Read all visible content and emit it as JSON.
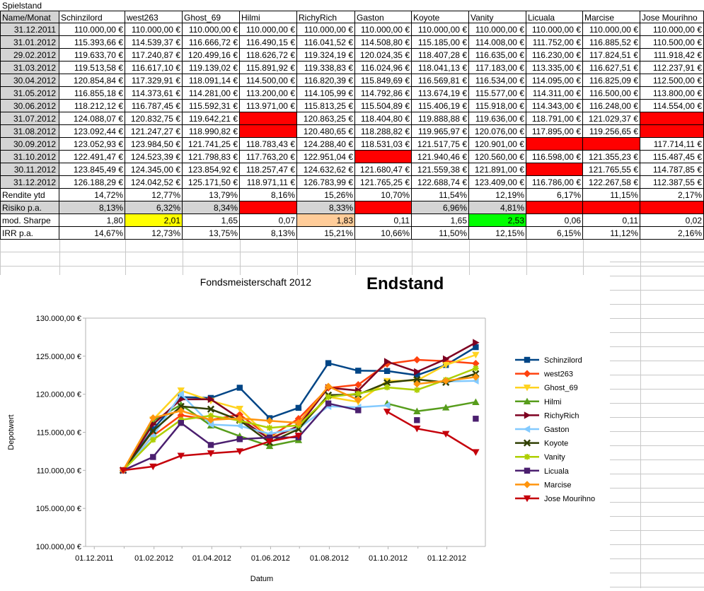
{
  "sheet": {
    "title": "Spielstand",
    "corner_label": "Name/Monat",
    "players": [
      "Schinzilord",
      "west263",
      "Ghost_69",
      "Hilmi",
      "RichyRich",
      "Gaston",
      "Koyote",
      "Vanity",
      "Licuala",
      "Marcise",
      "Jose Mourihno"
    ],
    "rows": [
      {
        "date": "31.12.2011",
        "values": [
          "110.000,00 €",
          "110.000,00 €",
          "110.000,00 €",
          "110.000,00 €",
          "110.000,00 €",
          "110.000,00 €",
          "110.000,00 €",
          "110.000,00 €",
          "110.000,00 €",
          "110.000,00 €",
          "110.000,00 €"
        ]
      },
      {
        "date": "31.01.2012",
        "values": [
          "115.393,66 €",
          "114.539,37 €",
          "116.666,72 €",
          "116.490,15 €",
          "116.041,52 €",
          "114.508,80 €",
          "115.185,00 €",
          "114.008,00 €",
          "111.752,00 €",
          "116.885,52 €",
          "110.500,00 €"
        ]
      },
      {
        "date": "29.02.2012",
        "values": [
          "119.633,70 €",
          "117.240,87 €",
          "120.499,16 €",
          "118.626,72 €",
          "119.324,19 €",
          "120.024,35 €",
          "118.407,28 €",
          "116.635,00 €",
          "116.230,00 €",
          "117.824,51 €",
          "111.918,42 €"
        ]
      },
      {
        "date": "31.03.2012",
        "values": [
          "119.513,58 €",
          "116.617,10 €",
          "119.139,02 €",
          "115.891,92 €",
          "119.338,83 €",
          "116.024,96 €",
          "118.041,13 €",
          "117.183,00 €",
          "113.335,00 €",
          "116.627,51 €",
          "112.237,91 €"
        ]
      },
      {
        "date": "30.04.2012",
        "values": [
          "120.854,84 €",
          "117.329,91 €",
          "118.091,14 €",
          "114.500,00 €",
          "116.820,39 €",
          "115.849,69 €",
          "116.569,81 €",
          "116.534,00 €",
          "114.095,00 €",
          "116.825,09 €",
          "112.500,00 €"
        ]
      },
      {
        "date": "31.05.2012",
        "values": [
          "116.855,18 €",
          "114.373,61 €",
          "114.281,00 €",
          "113.200,00 €",
          "114.105,99 €",
          "114.792,86 €",
          "113.674,19 €",
          "115.577,00 €",
          "114.311,00 €",
          "116.500,00 €",
          "113.800,00 €"
        ]
      },
      {
        "date": "30.06.2012",
        "values": [
          "118.212,12 €",
          "116.787,45 €",
          "115.592,31 €",
          "113.971,00 €",
          "115.813,25 €",
          "115.504,89 €",
          "115.406,19 €",
          "115.918,00 €",
          "114.343,00 €",
          "116.248,00 €",
          "114.554,00 €"
        ]
      },
      {
        "date": "31.07.2012",
        "values": [
          "124.088,07 €",
          "120.832,75 €",
          "119.642,21 €",
          "",
          "120.863,25 €",
          "118.404,80 €",
          "119.888,88 €",
          "119.636,00 €",
          "118.791,00 €",
          "121.029,37 €",
          ""
        ]
      },
      {
        "date": "31.08.2012",
        "values": [
          "123.092,44 €",
          "121.247,27 €",
          "118.990,82 €",
          "",
          "120.480,65 €",
          "118.288,82 €",
          "119.965,97 €",
          "120.076,00 €",
          "117.895,00 €",
          "119.256,65 €",
          ""
        ]
      },
      {
        "date": "30.09.2012",
        "values": [
          "123.052,93 €",
          "123.984,50 €",
          "121.741,25 €",
          "118.783,43 €",
          "124.288,40 €",
          "118.531,03 €",
          "121.517,75 €",
          "120.901,00 €",
          "",
          "",
          "117.714,11 €"
        ]
      },
      {
        "date": "31.10.2012",
        "values": [
          "122.491,47 €",
          "124.523,39 €",
          "121.798,83 €",
          "117.763,20 €",
          "122.951,04 €",
          "",
          "121.940,46 €",
          "120.560,00 €",
          "116.598,00 €",
          "121.355,23 €",
          "115.487,45 €"
        ]
      },
      {
        "date": "30.11.2012",
        "values": [
          "123.845,49 €",
          "124.345,00 €",
          "123.854,92 €",
          "118.257,47 €",
          "124.632,62 €",
          "121.680,47 €",
          "121.559,38 €",
          "121.891,00 €",
          "",
          "121.765,55 €",
          "114.787,85 €"
        ]
      },
      {
        "date": "31.12.2012",
        "values": [
          "126.188,29 €",
          "124.042,52 €",
          "125.171,50 €",
          "118.971,11 €",
          "126.783,99 €",
          "121.765,25 €",
          "122.688,74 €",
          "123.409,00 €",
          "116.786,00 €",
          "122.267,58 €",
          "112.387,55 €"
        ]
      }
    ],
    "stats": [
      {
        "label": "Rendite ytd",
        "values": [
          "14,72%",
          "12,77%",
          "13,79%",
          "8,16%",
          "15,26%",
          "10,70%",
          "11,54%",
          "12,19%",
          "6,17%",
          "11,15%",
          "2,17%"
        ]
      },
      {
        "label": "Risiko p.a.",
        "values": [
          "8,13%",
          "6,32%",
          "8,34%",
          "",
          "8,33%",
          "",
          "6,96%",
          "4,81%",
          "",
          "",
          ""
        ]
      },
      {
        "label": "mod. Sharpe",
        "values": [
          "1,80",
          "2,01",
          "1,65",
          "0,07",
          "1,83",
          "0,11",
          "1,65",
          "2,53",
          "0,06",
          "0,11",
          "0,02"
        ]
      },
      {
        "label": "IRR p.a.",
        "values": [
          "14,67%",
          "12,73%",
          "13,75%",
          "8,13%",
          "15,21%",
          "10,66%",
          "11,50%",
          "12,15%",
          "6,15%",
          "11,12%",
          "2,16%"
        ]
      }
    ],
    "highlight_colors": {
      "missing": "#ff0000",
      "sharpe_best": "#00ff00",
      "sharpe_second": "#ffff00",
      "sharpe_third": "#ffcc99"
    }
  },
  "chart_data": {
    "type": "line",
    "title": "Fondsmeisterschaft 2012",
    "subtitle": "Endstand",
    "xlabel": "Datum",
    "ylabel": "Depotwert",
    "ylim": [
      100000,
      130000
    ],
    "yticks": [
      100000,
      105000,
      110000,
      115000,
      120000,
      125000,
      130000
    ],
    "ytick_labels": [
      "100.000,00 €",
      "105.000,00 €",
      "110.000,00 €",
      "115.000,00 €",
      "120.000,00 €",
      "125.000,00 €",
      "130.000,00 €"
    ],
    "xtick_labels": [
      "01.12.2011",
      "01.02.2012",
      "01.04.2012",
      "01.06.2012",
      "01.08.2012",
      "01.10.2012",
      "01.12.2012"
    ],
    "x": [
      "2011-12-31",
      "2012-01-31",
      "2012-02-29",
      "2012-03-31",
      "2012-04-30",
      "2012-05-31",
      "2012-06-30",
      "2012-07-31",
      "2012-08-31",
      "2012-09-30",
      "2012-10-31",
      "2012-11-30",
      "2012-12-31"
    ],
    "legend_position": "right",
    "grid": false,
    "series": [
      {
        "name": "Schinzilord",
        "color": "#004586",
        "marker": "square",
        "values": [
          110000,
          115393.66,
          119633.7,
          119513.58,
          120854.84,
          116855.18,
          118212.12,
          124088.07,
          123092.44,
          123052.93,
          122491.47,
          123845.49,
          126188.29
        ]
      },
      {
        "name": "west263",
        "color": "#ff420e",
        "marker": "diamond",
        "values": [
          110000,
          114539.37,
          117240.87,
          116617.1,
          117329.91,
          114373.61,
          116787.45,
          120832.75,
          121247.27,
          123984.5,
          124523.39,
          124345.0,
          124042.52
        ]
      },
      {
        "name": "Ghost_69",
        "color": "#ffd320",
        "marker": "triangle-down",
        "values": [
          110000,
          116666.72,
          120499.16,
          119139.02,
          118091.14,
          114281.0,
          115592.31,
          119642.21,
          118990.82,
          121741.25,
          121798.83,
          123854.92,
          125171.5
        ]
      },
      {
        "name": "Hilmi",
        "color": "#579d1c",
        "marker": "triangle-up",
        "values": [
          110000,
          116490.15,
          118626.72,
          115891.92,
          114500.0,
          113200.0,
          113971.0,
          null,
          null,
          118783.43,
          117763.2,
          118257.47,
          118971.11
        ]
      },
      {
        "name": "RichyRich",
        "color": "#7e0021",
        "marker": "triangle-right",
        "values": [
          110000,
          116041.52,
          119324.19,
          119338.83,
          116820.39,
          114105.99,
          115813.25,
          120863.25,
          120480.65,
          124288.4,
          122951.04,
          124632.62,
          126783.99
        ]
      },
      {
        "name": "Gaston",
        "color": "#83caff",
        "marker": "triangle-left",
        "values": [
          110000,
          114508.8,
          120024.35,
          116024.96,
          115849.69,
          114792.86,
          115504.89,
          118404.8,
          118288.82,
          118531.03,
          null,
          121680.47,
          121765.25
        ]
      },
      {
        "name": "Koyote",
        "color": "#314004",
        "marker": "x",
        "values": [
          110000,
          115185.0,
          118407.28,
          118041.13,
          116569.81,
          113674.19,
          115406.19,
          119888.88,
          119965.97,
          121517.75,
          121940.46,
          121559.38,
          122688.74
        ]
      },
      {
        "name": "Vanity",
        "color": "#aecf00",
        "marker": "star",
        "values": [
          110000,
          114008.0,
          116635.0,
          117183.0,
          116534.0,
          115577.0,
          115918.0,
          119636.0,
          120076.0,
          120901.0,
          120560.0,
          121891.0,
          123409.0
        ]
      },
      {
        "name": "Licuala",
        "color": "#4b1f6f",
        "marker": "square",
        "values": [
          110000,
          111752.0,
          116230.0,
          113335.0,
          114095.0,
          114311.0,
          114343.0,
          118791.0,
          117895.0,
          null,
          116598.0,
          null,
          116786.0
        ]
      },
      {
        "name": "Marcise",
        "color": "#ff950e",
        "marker": "diamond",
        "values": [
          110000,
          116885.52,
          117824.51,
          116627.51,
          116825.09,
          116500.0,
          116248.0,
          121029.37,
          119256.65,
          null,
          121355.23,
          121765.55,
          122267.58
        ]
      },
      {
        "name": "Jose Mourihno",
        "color": "#c5000b",
        "marker": "triangle-down",
        "values": [
          110000,
          110500.0,
          111918.42,
          112237.91,
          112500.0,
          113800.0,
          114554.0,
          null,
          null,
          117714.11,
          115487.45,
          114787.85,
          112387.55
        ]
      }
    ]
  }
}
